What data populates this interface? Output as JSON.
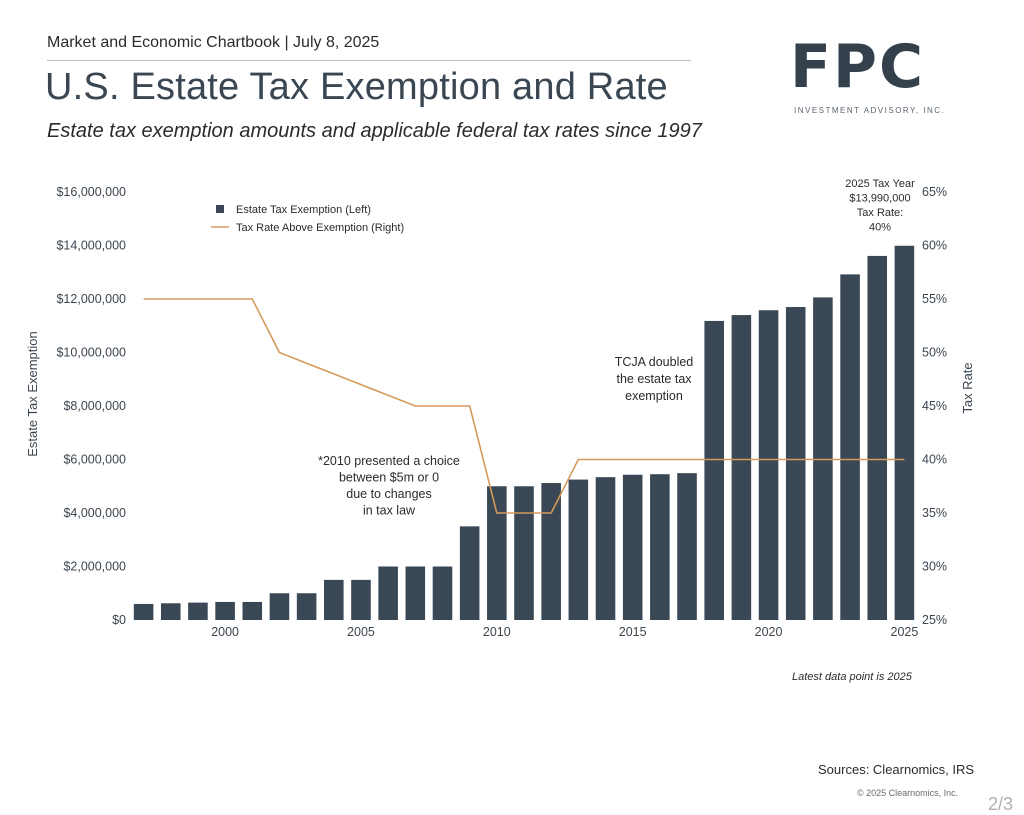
{
  "header": {
    "line": "Market and Economic Chartbook | July 8, 2025",
    "title": "U.S. Estate Tax Exemption and Rate",
    "subtitle": "Estate tax exemption amounts and applicable federal tax rates since 1997"
  },
  "logo": {
    "text": "FPC",
    "subtext": "INVESTMENT ADVISORY, INC."
  },
  "footer": {
    "latest": "Latest data point is 2025",
    "sources": "Sources: Clearnomics, IRS",
    "copyright": "© 2025 Clearnomics, Inc.",
    "page": "2/3"
  },
  "colors": {
    "bar": "#3a4754",
    "line": "#d59a5b",
    "logo": "#34404b"
  },
  "chart_data": {
    "type": "bar",
    "x": [
      1997,
      1998,
      1999,
      2000,
      2001,
      2002,
      2003,
      2004,
      2005,
      2006,
      2007,
      2008,
      2009,
      2010,
      2011,
      2012,
      2013,
      2014,
      2015,
      2016,
      2017,
      2018,
      2019,
      2020,
      2021,
      2022,
      2023,
      2024,
      2025
    ],
    "series": [
      {
        "name": "Estate Tax Exemption (Left)",
        "axis": "left",
        "type": "bar",
        "values": [
          600000,
          625000,
          650000,
          675000,
          675000,
          1000000,
          1000000,
          1500000,
          1500000,
          2000000,
          2000000,
          2000000,
          3500000,
          5000000,
          5000000,
          5120000,
          5250000,
          5340000,
          5430000,
          5450000,
          5490000,
          11180000,
          11400000,
          11580000,
          11700000,
          12060000,
          12920000,
          13610000,
          13990000
        ]
      },
      {
        "name": "Tax Rate Above Exemption (Right)",
        "axis": "right",
        "type": "line",
        "values": [
          55,
          55,
          55,
          55,
          55,
          50,
          49,
          48,
          47,
          46,
          45,
          45,
          45,
          35,
          35,
          35,
          40,
          40,
          40,
          40,
          40,
          40,
          40,
          40,
          40,
          40,
          40,
          40,
          40
        ]
      }
    ],
    "x_ticks": [
      "2000",
      "2005",
      "2010",
      "2015",
      "2020",
      "2025"
    ],
    "x_tick_values": [
      2000,
      2005,
      2010,
      2015,
      2020,
      2025
    ],
    "y_left": {
      "label": "Estate Tax Exemption",
      "ylim": [
        0,
        16000000
      ],
      "ticks": [
        "$0",
        "$2,000,000",
        "$4,000,000",
        "$6,000,000",
        "$8,000,000",
        "$10,000,000",
        "$12,000,000",
        "$14,000,000",
        "$16,000,000"
      ]
    },
    "y_right": {
      "label": "Tax Rate",
      "ylim": [
        25,
        65
      ],
      "ticks": [
        "25%",
        "30%",
        "35%",
        "40%",
        "45%",
        "50%",
        "55%",
        "60%",
        "65%"
      ]
    },
    "legend": [
      "Estate Tax Exemption (Left)",
      "Tax Rate Above Exemption (Right)"
    ],
    "legend_position": "top-left",
    "grid": false,
    "annotations": {
      "note_2010": [
        "*2010 presented a choice",
        "between $5m or 0",
        "due to changes",
        "in tax law"
      ],
      "tcja": [
        "TCJA doubled",
        "the estate tax",
        "exemption"
      ],
      "latest_2025": [
        "2025 Tax Year",
        "$13,990,000",
        "Tax Rate:",
        "40%"
      ]
    }
  }
}
